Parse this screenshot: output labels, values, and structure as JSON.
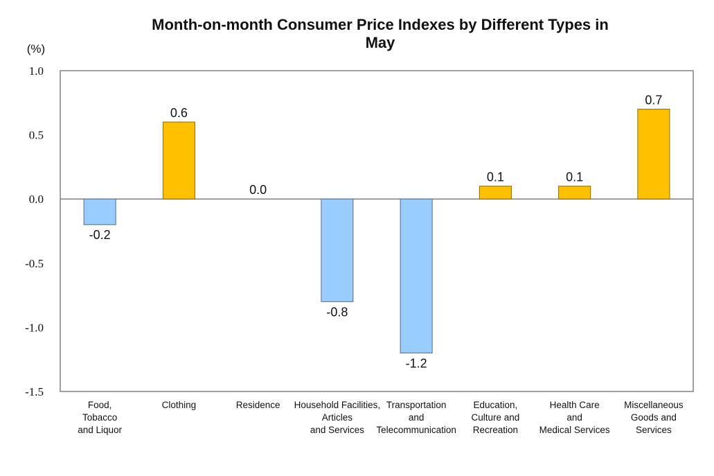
{
  "chart_data": {
    "type": "bar",
    "title_lines": [
      "Month-on-month Consumer Price Indexes by Different Types in",
      "May"
    ],
    "ylabel": "(%)",
    "xlabel": "",
    "ylim": [
      -1.5,
      1.0
    ],
    "yticks": [
      "1.0",
      "0.5",
      "0.0",
      "-0.5",
      "-1.0",
      "-1.5"
    ],
    "ytick_values": [
      1.0,
      0.5,
      0.0,
      -0.5,
      -1.0,
      -1.5
    ],
    "categories": [
      [
        "Food,",
        "Tobacco",
        "and Liquor"
      ],
      [
        "Clothing"
      ],
      [
        "Residence"
      ],
      [
        "Household Facilities,",
        "Articles",
        "and Services"
      ],
      [
        "Transportation",
        "and",
        "Telecommunication"
      ],
      [
        "Education,",
        "Culture and",
        "Recreation"
      ],
      [
        "Health Care",
        "and",
        "Medical Services"
      ],
      [
        "Miscellaneous",
        "Goods and",
        "Services"
      ]
    ],
    "values": [
      -0.2,
      0.6,
      0.0,
      -0.8,
      -1.2,
      0.1,
      0.1,
      0.7
    ],
    "value_labels": [
      "-0.2",
      "0.6",
      "0.0",
      "-0.8",
      "-1.2",
      "0.1",
      "0.1",
      "0.7"
    ],
    "grid": false,
    "colors": {
      "positive_fill": "#FFC000",
      "positive_stroke": "#8C6B00",
      "negative_fill": "#99CCFF",
      "negative_stroke": "#4F6F8F",
      "axis": "#808080",
      "frame": "#808080"
    }
  }
}
